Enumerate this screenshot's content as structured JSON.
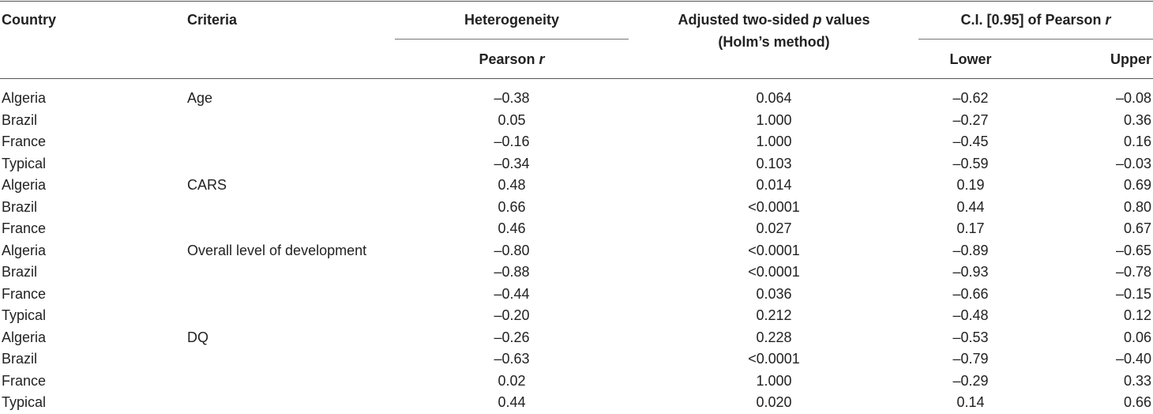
{
  "table": {
    "headers": {
      "country": "Country",
      "criteria": "Criteria",
      "heterogeneity": "Heterogeneity",
      "pearson_r_label": "Pearson",
      "pearson_r_var": "r",
      "pval_line1_a": "Adjusted two-sided",
      "pval_line1_p": "p",
      "pval_line1_b": "values",
      "pval_line2": "(Holm’s method)",
      "ci_label": "C.I. [0.95] of Pearson",
      "ci_var": "r",
      "lower": "Lower",
      "upper": "Upper"
    },
    "rows": [
      {
        "country": "Algeria",
        "criteria": "Age",
        "pearson_r": "–0.38",
        "p_value": "0.064",
        "lower": "–0.62",
        "upper": "–0.08"
      },
      {
        "country": "Brazil",
        "criteria": "",
        "pearson_r": "0.05",
        "p_value": "1.000",
        "lower": "–0.27",
        "upper": "0.36"
      },
      {
        "country": "France",
        "criteria": "",
        "pearson_r": "–0.16",
        "p_value": "1.000",
        "lower": "–0.45",
        "upper": "0.16"
      },
      {
        "country": "Typical",
        "criteria": "",
        "pearson_r": "–0.34",
        "p_value": "0.103",
        "lower": "–0.59",
        "upper": "–0.03"
      },
      {
        "country": "Algeria",
        "criteria": "CARS",
        "pearson_r": "0.48",
        "p_value": "0.014",
        "lower": "0.19",
        "upper": "0.69"
      },
      {
        "country": "Brazil",
        "criteria": "",
        "pearson_r": "0.66",
        "p_value": "<0.0001",
        "lower": "0.44",
        "upper": "0.80"
      },
      {
        "country": "France",
        "criteria": "",
        "pearson_r": "0.46",
        "p_value": "0.027",
        "lower": "0.17",
        "upper": "0.67"
      },
      {
        "country": "Algeria",
        "criteria": "Overall level of development",
        "pearson_r": "–0.80",
        "p_value": "<0.0001",
        "lower": "–0.89",
        "upper": "–0.65"
      },
      {
        "country": "Brazil",
        "criteria": "",
        "pearson_r": "–0.88",
        "p_value": "<0.0001",
        "lower": "–0.93",
        "upper": "–0.78"
      },
      {
        "country": "France",
        "criteria": "",
        "pearson_r": "–0.44",
        "p_value": "0.036",
        "lower": "–0.66",
        "upper": "–0.15"
      },
      {
        "country": "Typical",
        "criteria": "",
        "pearson_r": "–0.20",
        "p_value": "0.212",
        "lower": "–0.48",
        "upper": "0.12"
      },
      {
        "country": "Algeria",
        "criteria": "DQ",
        "pearson_r": "–0.26",
        "p_value": "0.228",
        "lower": "–0.53",
        "upper": "0.06"
      },
      {
        "country": "Brazil",
        "criteria": "",
        "pearson_r": "–0.63",
        "p_value": "<0.0001",
        "lower": "–0.79",
        "upper": "–0.40"
      },
      {
        "country": "France",
        "criteria": "",
        "pearson_r": "0.02",
        "p_value": "1.000",
        "lower": "–0.29",
        "upper": "0.33"
      },
      {
        "country": "Typical",
        "criteria": "",
        "pearson_r": "0.44",
        "p_value": "0.020",
        "lower": "0.14",
        "upper": "0.66"
      }
    ]
  }
}
